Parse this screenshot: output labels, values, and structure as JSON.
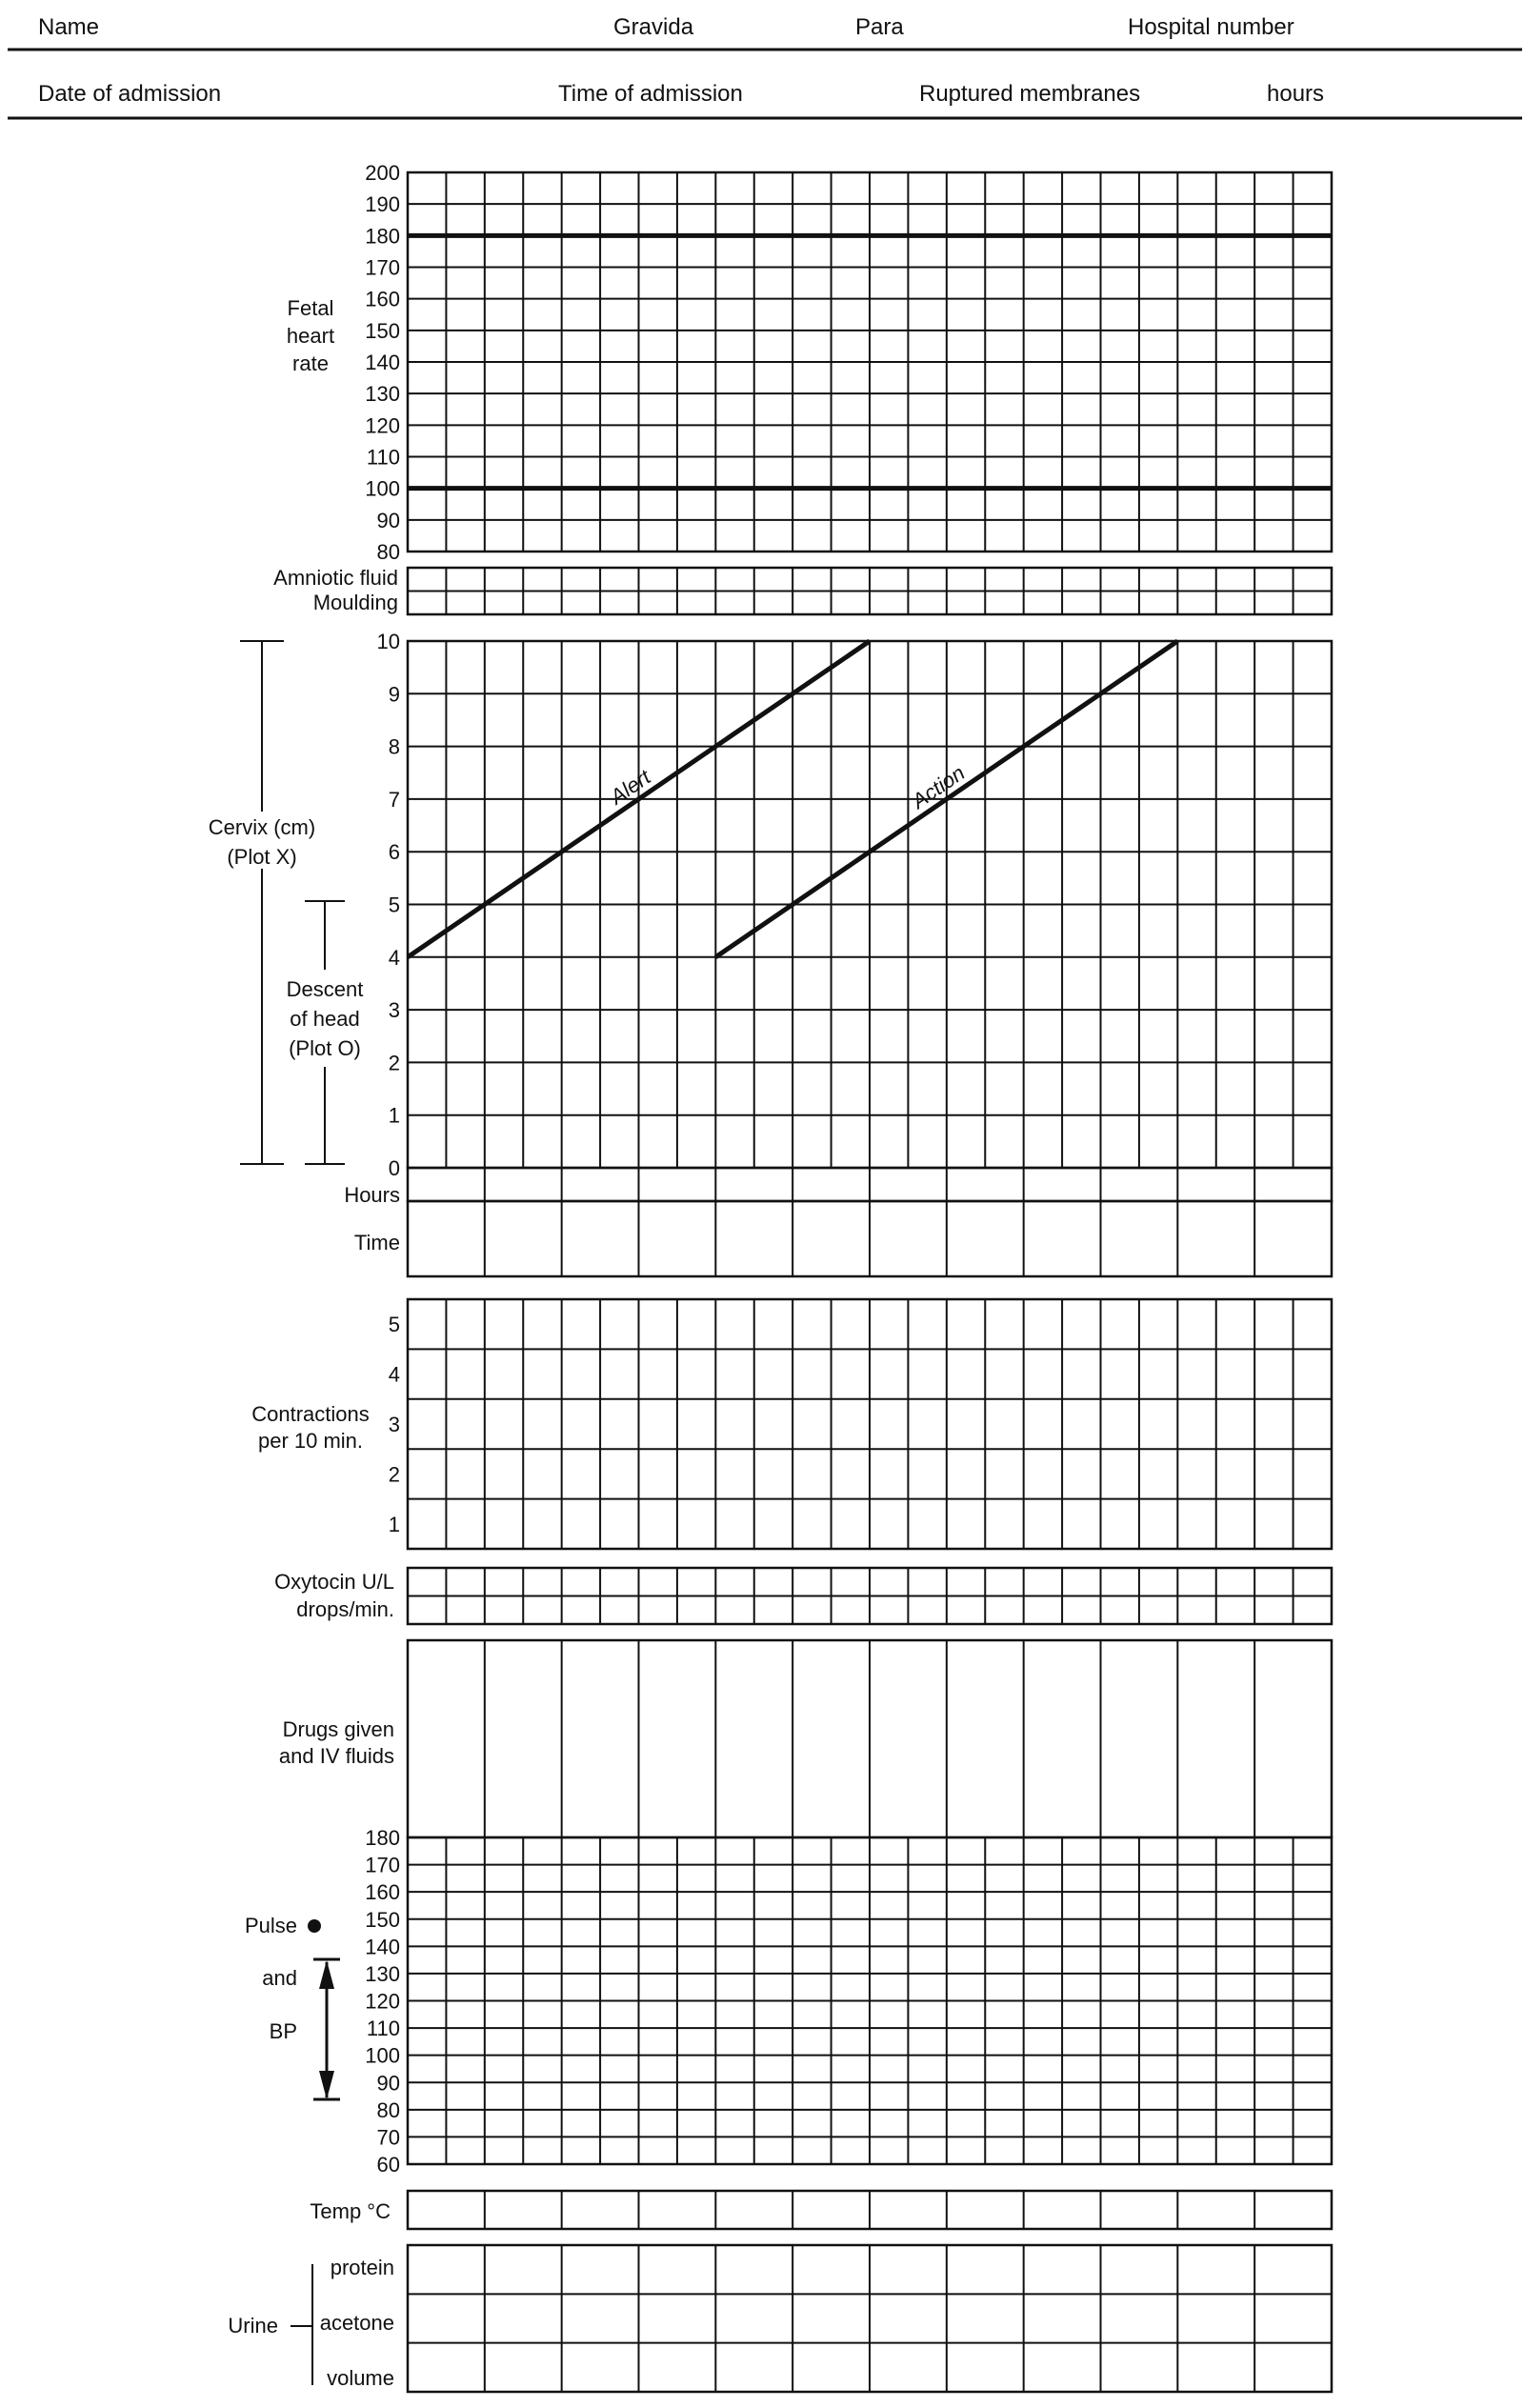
{
  "header": {
    "row1": [
      "Name",
      "Gravida",
      "Para",
      "Hospital number"
    ],
    "row2": [
      "Date of admission",
      "Time of admission",
      "Ruptured membranes",
      "hours"
    ]
  },
  "fetal_heart_rate": {
    "label": [
      "Fetal",
      "heart",
      "rate"
    ],
    "ticks": [
      "200",
      "190",
      "180",
      "170",
      "160",
      "150",
      "140",
      "130",
      "120",
      "110",
      "100",
      "90",
      "80"
    ],
    "bold_lines": [
      "180",
      "100"
    ]
  },
  "liquor": {
    "labels": [
      "Amniotic fluid",
      "Moulding"
    ]
  },
  "cervix": {
    "label": [
      "Cervix (cm)",
      "(Plot X)"
    ],
    "descent_label": [
      "Descent",
      "of head",
      "(Plot O)"
    ],
    "ticks": [
      "10",
      "9",
      "8",
      "7",
      "6",
      "5",
      "4",
      "3",
      "2",
      "1",
      "0"
    ],
    "alert_line": {
      "label": "Alert",
      "from": {
        "hour": 0,
        "cm": 4
      },
      "to": {
        "hour": 6,
        "cm": 10
      }
    },
    "action_line": {
      "label": "Action",
      "from": {
        "hour": 4,
        "cm": 4
      },
      "to": {
        "hour": 10,
        "cm": 10
      }
    },
    "hours_label": "Hours",
    "time_label": "Time"
  },
  "contractions": {
    "label": [
      "Contractions",
      "per 10 min."
    ],
    "ticks": [
      "5",
      "4",
      "3",
      "2",
      "1"
    ]
  },
  "oxytocin": {
    "labels": [
      "Oxytocin U/L",
      "drops/min."
    ]
  },
  "drugs": {
    "label": [
      "Drugs given",
      "and IV fluids"
    ]
  },
  "pulse_bp": {
    "labels": [
      "Pulse",
      "and",
      "BP"
    ],
    "ticks": [
      "180",
      "170",
      "160",
      "150",
      "140",
      "130",
      "120",
      "110",
      "100",
      "90",
      "80",
      "70",
      "60"
    ]
  },
  "temp": {
    "label": "Temp °C"
  },
  "urine": {
    "label": "Urine",
    "rows": [
      "protein",
      "acetone",
      "volume"
    ]
  }
}
